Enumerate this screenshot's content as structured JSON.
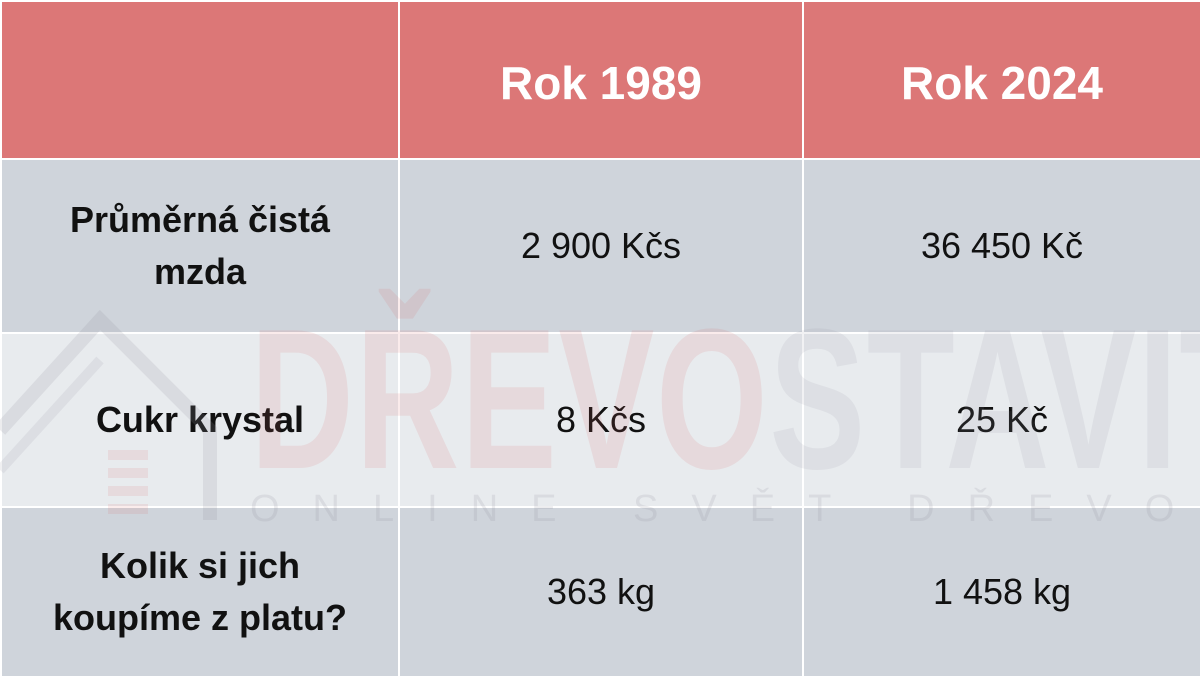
{
  "table": {
    "headers": [
      "",
      "Rok 1989",
      "Rok 2024"
    ],
    "rows": [
      {
        "label": "Průměrná čistá mzda",
        "y1989": "2 900 Kčs",
        "y2024": "36 450 Kč"
      },
      {
        "label": "Cukr krystal",
        "y1989": "8 Kčs",
        "y2024": "25 Kč"
      },
      {
        "label": "Kolik si jich koupíme z platu?",
        "y1989": "363 kg",
        "y2024": "1 458 kg"
      }
    ]
  },
  "watermark": {
    "title_red": "DŘEVO",
    "title_rest": "STAVITEL",
    "subtitle": "ONLINE SVĚT DŘEVOSTAVEB"
  },
  "colors": {
    "header": "#dc7777",
    "row": "#cfd4db",
    "row_alt": "#e8ebee"
  }
}
